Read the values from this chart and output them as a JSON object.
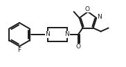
{
  "bg_color": "#ffffff",
  "line_color": "#1a1a1a",
  "line_width": 1.4,
  "font_size": 6.5,
  "figsize": [
    1.82,
    0.97
  ],
  "dpi": 100,
  "xlim": [
    0,
    182
  ],
  "ylim": [
    0,
    97
  ]
}
